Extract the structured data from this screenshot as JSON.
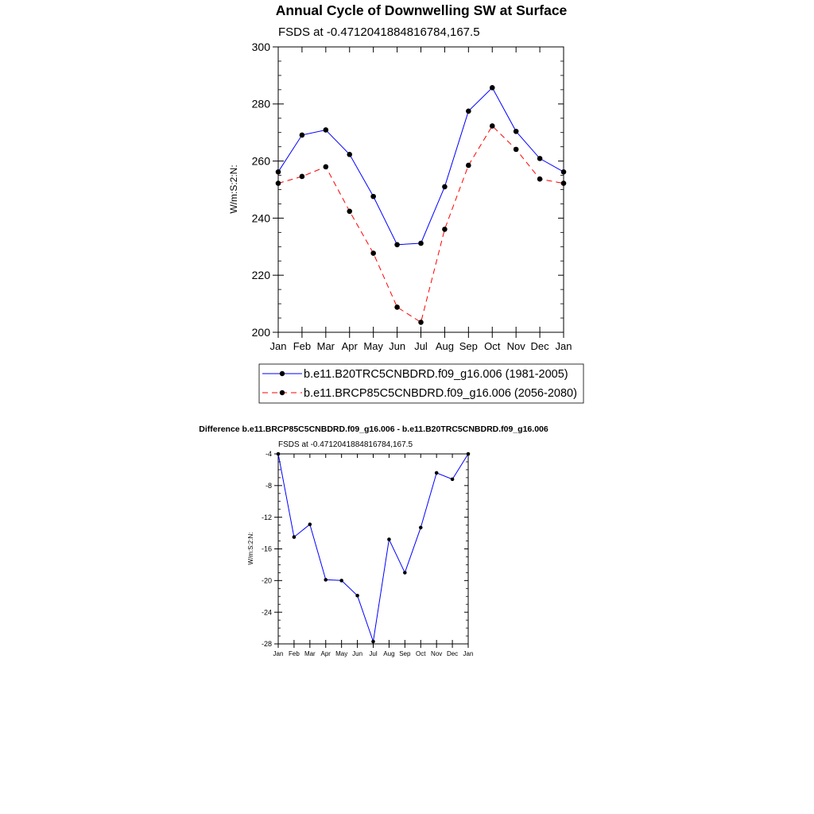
{
  "chart_data": [
    {
      "type": "line",
      "title": "Annual Cycle of Downwelling SW at Surface",
      "subtitle": "FSDS at -0.4712041884816784,167.5",
      "ylabel": "W/m:S:2:N:",
      "xlabel": "",
      "categories": [
        "Jan",
        "Feb",
        "Mar",
        "Apr",
        "May",
        "Jun",
        "Jul",
        "Aug",
        "Sep",
        "Oct",
        "Nov",
        "Dec",
        "Jan"
      ],
      "ylim": [
        200,
        300
      ],
      "yticks": [
        200,
        220,
        240,
        260,
        280,
        300
      ],
      "grid": false,
      "legend_position": "bottom",
      "series": [
        {
          "name": "b.e11.B20TRC5CNBDRD.f09_g16.006 (1981-2005)",
          "color": "#0000ff",
          "dash": "solid",
          "values": [
            256.2,
            269.1,
            270.9,
            262.3,
            247.6,
            230.7,
            231.2,
            251.0,
            277.5,
            285.7,
            270.4,
            260.9,
            256.2
          ]
        },
        {
          "name": "b.e11.BRCP85C5CNBDRD.f09_g16.006 (2056-2080)",
          "color": "#ff0000",
          "dash": "dashed",
          "values": [
            252.2,
            254.6,
            258.0,
            242.4,
            227.7,
            208.8,
            203.5,
            236.1,
            258.5,
            272.3,
            264.1,
            253.7,
            252.2
          ]
        }
      ]
    },
    {
      "type": "line",
      "title": "Difference b.e11.BRCP85C5CNBDRD.f09_g16.006 - b.e11.B20TRC5CNBDRD.f09_g16.006",
      "subtitle": "FSDS at -0.4712041884816784,167.5",
      "ylabel": "W/m:S:2:N:",
      "xlabel": "",
      "categories": [
        "Jan",
        "Feb",
        "Mar",
        "Apr",
        "May",
        "Jun",
        "Jul",
        "Aug",
        "Sep",
        "Oct",
        "Nov",
        "Dec",
        "Jan"
      ],
      "ylim": [
        -28,
        -4
      ],
      "yticks": [
        -28,
        -24,
        -20,
        -16,
        -12,
        -8,
        -4
      ],
      "grid": false,
      "series": [
        {
          "color": "#0000ff",
          "dash": "solid",
          "values": [
            -4.0,
            -14.5,
            -12.9,
            -19.9,
            -20.0,
            -21.9,
            -27.7,
            -14.8,
            -19.0,
            -13.3,
            -6.4,
            -7.2,
            -4.0
          ]
        }
      ]
    }
  ]
}
